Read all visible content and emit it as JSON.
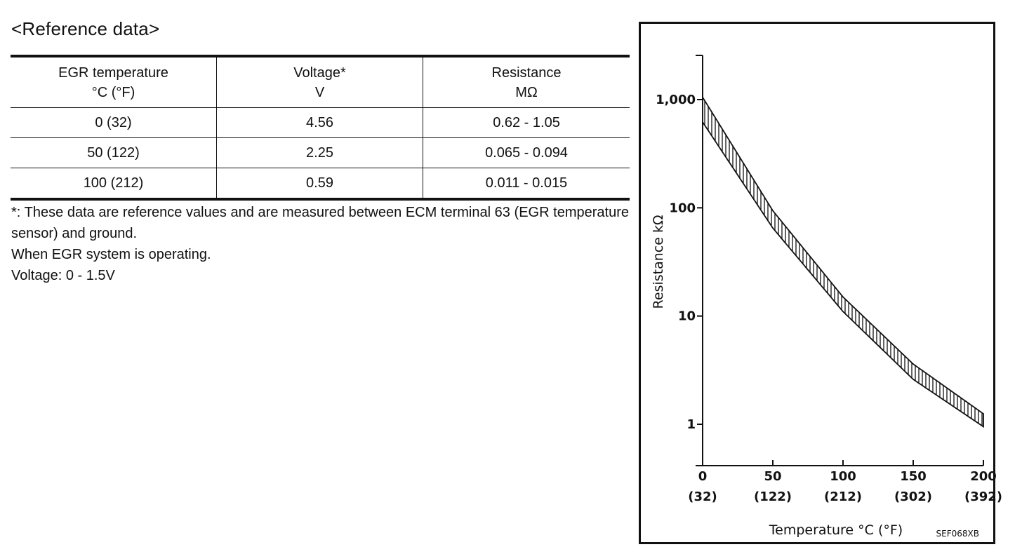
{
  "title": "<Reference data>",
  "table": {
    "headers": [
      {
        "line1": "EGR temperature",
        "line2": "°C (°F)"
      },
      {
        "line1": "Voltage*",
        "line2": "V"
      },
      {
        "line1": "Resistance",
        "line2": "MΩ"
      }
    ],
    "rows": [
      [
        "0 (32)",
        "4.56",
        "0.62 - 1.05"
      ],
      [
        "50 (122)",
        "2.25",
        "0.065 - 0.094"
      ],
      [
        "100 (212)",
        "0.59",
        "0.011 - 0.015"
      ]
    ]
  },
  "notes": {
    "footnote": "*: These data are reference values and are measured between ECM terminal 63 (EGR temperature sensor) and ground.",
    "condition": "When EGR system is operating.",
    "voltage": "Voltage: 0 - 1.5V"
  },
  "chart_data": {
    "type": "area",
    "scale_y": "log",
    "xlabel": "Temperature °C (°F)",
    "ylabel": "Resistance kΩ",
    "x_ticks": [
      {
        "value": 0,
        "label": "0",
        "sub": "(32)"
      },
      {
        "value": 50,
        "label": "50",
        "sub": "(122)"
      },
      {
        "value": 100,
        "label": "100",
        "sub": "(212)"
      },
      {
        "value": 150,
        "label": "150",
        "sub": "(302)"
      },
      {
        "value": 200,
        "label": "200",
        "sub": "(392)"
      }
    ],
    "y_ticks": [
      {
        "value": 1,
        "label": "1"
      },
      {
        "value": 10,
        "label": "10"
      },
      {
        "value": 100,
        "label": "100"
      },
      {
        "value": 1000,
        "label": "1,000"
      }
    ],
    "xlim": [
      0,
      200
    ],
    "ylim": [
      0.5,
      2000
    ],
    "series": [
      {
        "x": [
          0,
          50,
          100,
          150,
          200
        ],
        "upper": [
          1050,
          94,
          15,
          3.6,
          1.25
        ],
        "lower": [
          620,
          65,
          11,
          2.6,
          0.95
        ]
      }
    ],
    "fill": "vertical-hatch",
    "code": "SEF068XB"
  }
}
